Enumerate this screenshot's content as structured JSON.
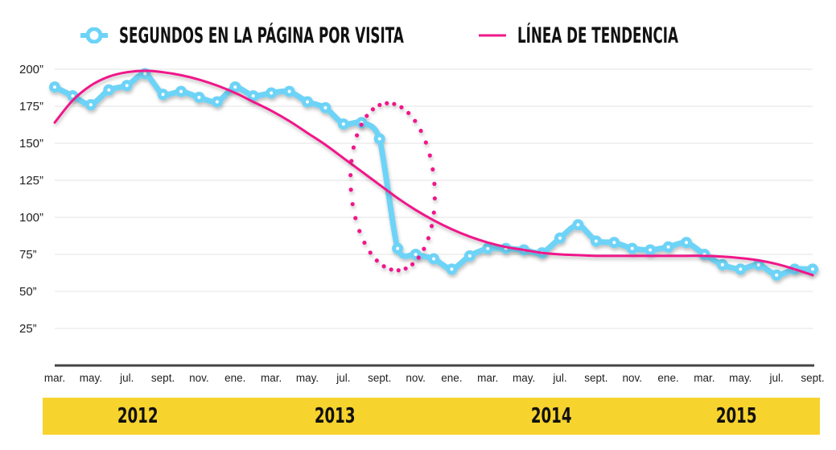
{
  "legend": {
    "series_label": "SEGUNDOS EN LA PÁGINA POR VISITA",
    "trend_label": "LÍNEA DE TENDENCIA",
    "series_icon": "circle-marker-line-icon",
    "trend_icon": "line-icon"
  },
  "colors": {
    "series": "#6dd3f7",
    "trend": "#f0198a",
    "year_band": "#f7d32e",
    "grid": "#e3e3e3",
    "axis": "#444444"
  },
  "chart_data": {
    "type": "line",
    "title": "",
    "xlabel": "",
    "ylabel": "",
    "ylim": [
      0,
      200
    ],
    "yticks": [
      25,
      50,
      75,
      100,
      125,
      150,
      175,
      200
    ],
    "ytick_labels": [
      "25”",
      "50”",
      "75”",
      "100”",
      "125”",
      "150”",
      "175”",
      "200”"
    ],
    "grid": true,
    "legend_position": "top",
    "x": [
      "2012-03",
      "2012-04",
      "2012-05",
      "2012-06",
      "2012-07",
      "2012-08",
      "2012-09",
      "2012-10",
      "2012-11",
      "2012-12",
      "2013-01",
      "2013-02",
      "2013-03",
      "2013-04",
      "2013-05",
      "2013-06",
      "2013-07",
      "2013-08",
      "2013-09",
      "2013-10",
      "2013-11",
      "2013-12",
      "2014-01",
      "2014-02",
      "2014-03",
      "2014-04",
      "2014-05",
      "2014-06",
      "2014-07",
      "2014-08",
      "2014-09",
      "2014-10",
      "2014-11",
      "2014-12",
      "2015-01",
      "2015-02",
      "2015-03",
      "2015-04",
      "2015-05",
      "2015-06",
      "2015-07",
      "2015-08",
      "2015-09"
    ],
    "xtick_labels": [
      "mar.",
      "may.",
      "jul.",
      "sept.",
      "nov.",
      "ene.",
      "mar.",
      "may.",
      "jul.",
      "sept.",
      "nov.",
      "ene.",
      "mar.",
      "may.",
      "jul.",
      "sept.",
      "nov.",
      "ene.",
      "mar.",
      "may.",
      "jul.",
      "sept."
    ],
    "xtick_index": [
      0,
      2,
      4,
      6,
      8,
      10,
      12,
      14,
      16,
      18,
      20,
      22,
      24,
      26,
      28,
      30,
      32,
      34,
      36,
      38,
      40,
      42
    ],
    "year_groups": [
      {
        "label": "2012",
        "start": 0,
        "end": 9
      },
      {
        "label": "2013",
        "start": 10,
        "end": 21
      },
      {
        "label": "2014",
        "start": 22,
        "end": 33
      },
      {
        "label": "2015",
        "start": 34,
        "end": 42
      }
    ],
    "series": [
      {
        "name": "Segundos en la página por visita",
        "values": [
          188,
          182,
          176,
          186,
          189,
          197,
          183,
          185,
          181,
          178,
          188,
          182,
          184,
          185,
          178,
          174,
          163,
          164,
          153,
          79,
          75,
          72,
          65,
          74,
          79,
          79,
          78,
          76,
          86,
          95,
          84,
          83,
          79,
          78,
          80,
          83,
          75,
          68,
          65,
          68,
          61,
          65,
          65
        ]
      },
      {
        "name": "Línea de tendencia",
        "values": [
          164,
          179,
          189,
          195,
          198,
          199,
          198,
          196,
          193,
          189,
          184,
          178,
          172,
          165,
          157,
          149,
          140,
          131,
          122,
          113,
          105,
          98,
          92,
          87,
          83,
          80,
          78,
          76,
          75,
          74.5,
          74,
          74,
          74,
          74,
          74,
          74,
          74,
          73.5,
          72.5,
          71,
          68.5,
          65,
          61
        ]
      }
    ],
    "annotation": {
      "type": "dotted-ellipse",
      "around": [
        "2013-08",
        "2013-11"
      ],
      "color": "#f0198a"
    }
  }
}
